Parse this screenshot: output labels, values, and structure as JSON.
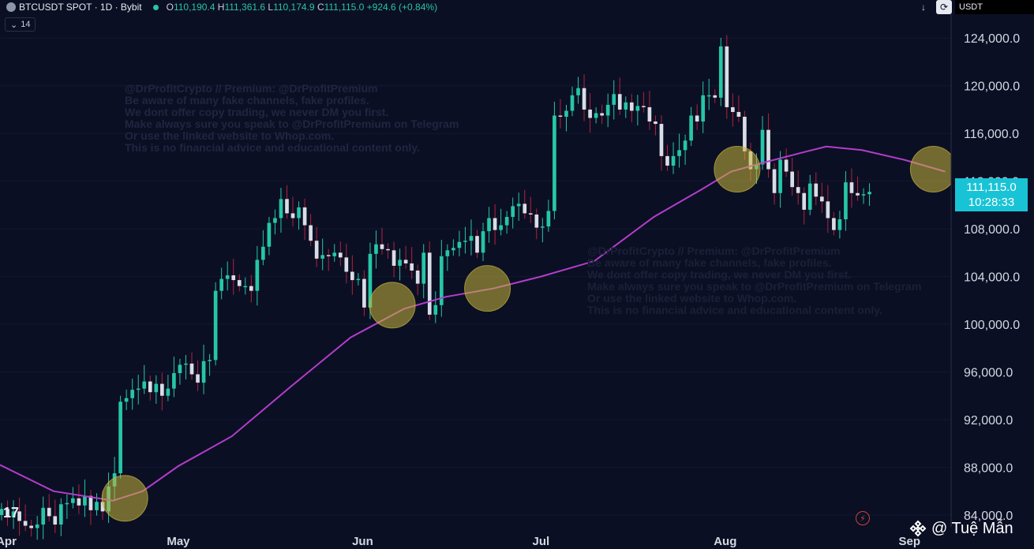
{
  "header": {
    "symbol": "BTCUSDT SPOT · 1D · Bybit",
    "ohlc": {
      "o_label": "O",
      "o": "110,190.4",
      "h_label": "H",
      "h": "111,361.6",
      "l_label": "L",
      "l": "110,174.9",
      "c_label": "C",
      "c": "111,115.0",
      "change": "+924.6 (+0.84%)"
    },
    "indicator_value": "14",
    "currency": "USDT"
  },
  "price_tag": {
    "price": "111,115.0",
    "countdown": "10:28:33"
  },
  "watermark": [
    "@DrProfitCrypto // Premium: @DrProfitPremium",
    "Be aware of many fake channels, fake profiles.",
    "We dont offer copy trading, we never DM you first.",
    "Make always sure you speak to @DrProfitPremium on Telegram",
    "Or use the linked website to Whop.com.",
    "This is no financial advice and educational content only."
  ],
  "credit": "@ Tuệ Mẫn",
  "logo_text": "17",
  "colors": {
    "up": "#26c6a6",
    "down": "#d9dde6",
    "ma": "#b23ec8",
    "circle": "#c8b63c",
    "tag": "#19c3d6"
  },
  "chart_data": {
    "type": "candlestick",
    "title": "BTCUSDT SPOT · 1D · Bybit",
    "ylim": [
      83000,
      126000
    ],
    "y_ticks": [
      "124,000.0",
      "120,000.0",
      "116,000.0",
      "112,000.0",
      "108,000.0",
      "104,000.0",
      "100,000.0",
      "96,000.0",
      "92,000.0",
      "88,000.0",
      "84,000.0"
    ],
    "x_ticks": [
      "Apr",
      "May",
      "Jun",
      "Jul",
      "Aug",
      "Sep"
    ],
    "x_range": [
      "2025-04-01",
      "2025-09-08"
    ],
    "candles_close": [
      84500,
      83800,
      84300,
      83500,
      83100,
      82900,
      83200,
      84600,
      83900,
      83200,
      84900,
      85000,
      85400,
      84800,
      85600,
      84400,
      85100,
      84300,
      86400,
      87500,
      93500,
      93800,
      94500,
      94600,
      95200,
      94300,
      95000,
      94000,
      94600,
      95900,
      96600,
      96700,
      95800,
      95100,
      96900,
      97000,
      102800,
      103800,
      104100,
      103700,
      103200,
      103200,
      102800,
      105400,
      106500,
      108500,
      108900,
      110500,
      109300,
      108900,
      109800,
      108300,
      107000,
      105500,
      105800,
      105700,
      106000,
      105600,
      104400,
      103700,
      103800,
      101400,
      105900,
      106700,
      106300,
      106200,
      104900,
      105400,
      105100,
      104500,
      103400,
      106000,
      100800,
      101600,
      105700,
      106200,
      106400,
      106900,
      107000,
      107400,
      106000,
      107800,
      108900,
      107900,
      108300,
      109000,
      109900,
      110100,
      109300,
      109200,
      108100,
      108200,
      109500,
      117500,
      117400,
      117900,
      119200,
      119800,
      118000,
      117300,
      117700,
      117500,
      118400,
      119300,
      118000,
      118600,
      117900,
      118300,
      118200,
      117000,
      116800,
      114100,
      113300,
      114100,
      114600,
      115400,
      117500,
      117000,
      119200,
      119200,
      119000,
      123300,
      118200,
      117800,
      117400,
      114500,
      113000,
      113400,
      116300,
      113000,
      111000,
      113800,
      112800,
      111500,
      111000,
      109600,
      111800,
      110700,
      110300,
      108900,
      107900,
      108800,
      111900,
      111000,
      110800,
      110900,
      111100
    ],
    "series": [
      {
        "name": "Moving Average",
        "points": [
          [
            "2025-04-01",
            88200
          ],
          [
            "2025-04-10",
            86000
          ],
          [
            "2025-04-20",
            85200
          ],
          [
            "2025-04-25",
            86000
          ],
          [
            "2025-05-01",
            88100
          ],
          [
            "2025-05-10",
            90600
          ],
          [
            "2025-05-20",
            94800
          ],
          [
            "2025-05-30",
            98900
          ],
          [
            "2025-06-08",
            101300
          ],
          [
            "2025-06-15",
            102300
          ],
          [
            "2025-06-23",
            103000
          ],
          [
            "2025-07-01",
            104000
          ],
          [
            "2025-07-10",
            105300
          ],
          [
            "2025-07-20",
            109000
          ],
          [
            "2025-07-28",
            111300
          ],
          [
            "2025-08-02",
            112800
          ],
          [
            "2025-08-07",
            113500
          ],
          [
            "2025-08-14",
            114400
          ],
          [
            "2025-08-18",
            114900
          ],
          [
            "2025-08-24",
            114600
          ],
          [
            "2025-08-31",
            113800
          ],
          [
            "2025-09-07",
            112800
          ]
        ]
      }
    ],
    "annotations": [
      {
        "type": "circle",
        "date": "2025-04-22",
        "value": 85400
      },
      {
        "type": "circle",
        "date": "2025-06-06",
        "value": 101600
      },
      {
        "type": "circle",
        "date": "2025-06-22",
        "value": 103000
      },
      {
        "type": "circle",
        "date": "2025-08-03",
        "value": 113000
      },
      {
        "type": "circle",
        "date": "2025-09-05",
        "value": 113000
      }
    ]
  }
}
